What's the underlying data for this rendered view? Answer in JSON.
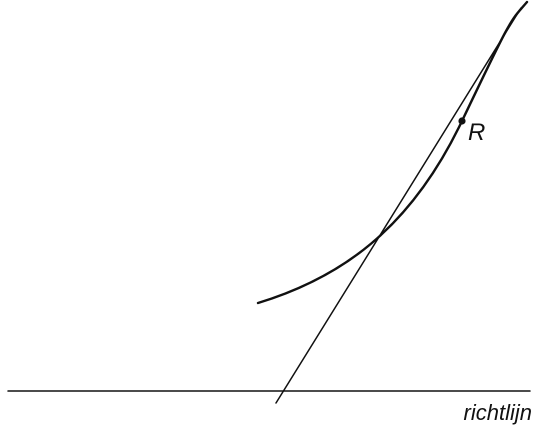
{
  "figure": {
    "point_label": "R",
    "line_label": "richtlijn",
    "ink_color": "#111111",
    "background_color": "#ffffff"
  }
}
